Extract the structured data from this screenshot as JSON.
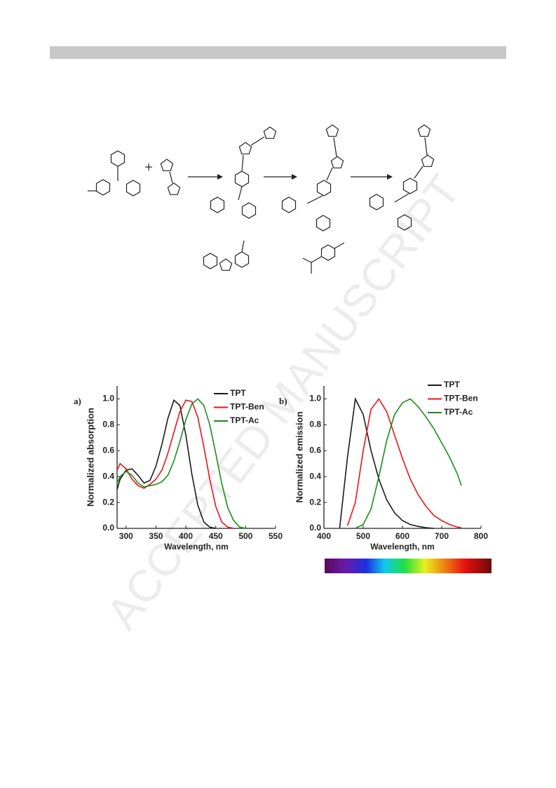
{
  "watermark": "ACCEPTED MANUSCRIPT",
  "chart_data": [
    {
      "type": "line",
      "label": "a)",
      "xlabel": "Wavelength, nm",
      "ylabel": "Normalized absorption",
      "x": [
        285,
        290,
        300,
        310,
        320,
        330,
        340,
        350,
        360,
        370,
        380,
        390,
        400,
        410,
        420,
        430,
        440,
        450,
        460,
        470,
        480,
        490,
        500
      ],
      "series": [
        {
          "name": "TPT",
          "color": "#1a1a1a",
          "values": [
            0.3,
            0.38,
            0.45,
            0.46,
            0.41,
            0.35,
            0.37,
            0.48,
            0.65,
            0.85,
            0.99,
            0.95,
            0.72,
            0.42,
            0.18,
            0.05,
            0.01,
            0,
            null,
            null,
            null,
            null,
            null
          ]
        },
        {
          "name": "TPT-Ben",
          "color": "#e8141b",
          "values": [
            0.45,
            0.5,
            0.46,
            0.38,
            0.33,
            0.31,
            0.34,
            0.38,
            0.45,
            0.58,
            0.74,
            0.9,
            0.99,
            0.98,
            0.86,
            0.63,
            0.38,
            0.17,
            0.05,
            0.01,
            0,
            null,
            null
          ]
        },
        {
          "name": "TPT-Ac",
          "color": "#1a8c1a",
          "values": [
            0.35,
            0.4,
            0.44,
            0.41,
            0.35,
            0.32,
            0.33,
            0.34,
            0.36,
            0.41,
            0.52,
            0.67,
            0.84,
            0.96,
            1.0,
            0.95,
            0.8,
            0.58,
            0.35,
            0.16,
            0.06,
            0.01,
            0
          ]
        }
      ],
      "xlim": [
        285,
        550
      ],
      "xticks": [
        300,
        350,
        400,
        450,
        500,
        550
      ],
      "ylim": [
        0,
        1.1
      ],
      "yticks": [
        {
          "value": 0,
          "label": "0.0"
        },
        0.2,
        0.4,
        0.6,
        0.8,
        {
          "value": 1,
          "label": "1.0"
        }
      ],
      "legend": "upper right"
    },
    {
      "type": "line",
      "label": "b)",
      "xlabel": "Wavelength, nm",
      "ylabel": "Normalized emission",
      "x": [
        440,
        460,
        480,
        500,
        520,
        540,
        560,
        580,
        600,
        620,
        640,
        660,
        680,
        700,
        720,
        740,
        750
      ],
      "series": [
        {
          "name": "TPT",
          "color": "#1a1a1a",
          "values": [
            0,
            0.55,
            1.0,
            0.88,
            0.6,
            0.38,
            0.22,
            0.12,
            0.06,
            0.03,
            0.015,
            0.005,
            0,
            null,
            null,
            null,
            null
          ]
        },
        {
          "name": "TPT-Ben",
          "color": "#e8141b",
          "values": [
            null,
            0.02,
            0.2,
            0.6,
            0.92,
            1.0,
            0.9,
            0.72,
            0.54,
            0.38,
            0.26,
            0.17,
            0.1,
            0.06,
            0.03,
            0.01,
            0.005
          ]
        },
        {
          "name": "TPT-Ac",
          "color": "#1a8c1a",
          "values": [
            null,
            null,
            0,
            0.03,
            0.15,
            0.4,
            0.68,
            0.88,
            0.97,
            1.0,
            0.94,
            0.86,
            0.77,
            0.66,
            0.55,
            0.42,
            0.33
          ]
        }
      ],
      "xlim": [
        400,
        800
      ],
      "xticks": [
        400,
        500,
        600,
        700,
        800
      ],
      "ylim": [
        0,
        1.1
      ],
      "yticks": [
        {
          "value": 0,
          "label": "0.0"
        },
        0.2,
        0.4,
        0.6,
        0.8,
        {
          "value": 1,
          "label": "1.0"
        }
      ],
      "legend": "upper right"
    }
  ]
}
